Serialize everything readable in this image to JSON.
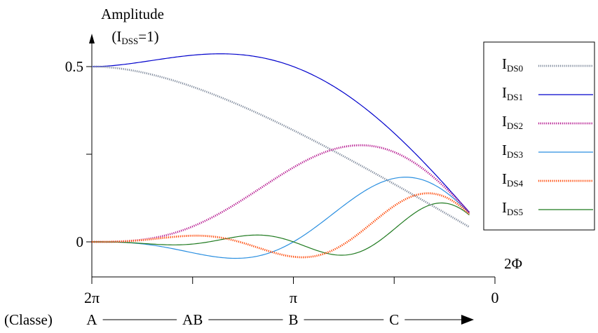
{
  "chart_data": {
    "type": "line",
    "ylabel": "Amplitude",
    "ylabel_sub": {
      "prefix": "(I",
      "sub": "DSS",
      "suffix": "=1)"
    },
    "xlabel": "2Φ",
    "x_reversed": true,
    "xlim": [
      6.2832,
      0
    ],
    "ylim": [
      -0.1,
      0.6
    ],
    "y_ticks": [
      {
        "value": 0.5,
        "label": "0.5"
      },
      {
        "value": 0.25,
        "label": ""
      },
      {
        "value": 0,
        "label": "0"
      }
    ],
    "x_ticks": [
      {
        "value": 6.2832,
        "label": "2π"
      },
      {
        "value": 4.7124,
        "label": ""
      },
      {
        "value": 3.1416,
        "label": "π"
      },
      {
        "value": 1.5708,
        "label": ""
      },
      {
        "value": 0,
        "label": "0"
      }
    ],
    "x_end": 0.4,
    "grid": false,
    "legend_position": "right",
    "classes": {
      "label": "(Classe)",
      "items": [
        {
          "label": "A",
          "x": 6.2832
        },
        {
          "label": "AB",
          "x": 4.7124
        },
        {
          "label": "B",
          "x": 3.1416
        },
        {
          "label": "C",
          "x": 1.5708
        }
      ]
    },
    "series": [
      {
        "name": "DS0",
        "color": "#7f8a9c",
        "style": "dotted"
      },
      {
        "name": "DS1",
        "color": "#0000cc",
        "style": "solid"
      },
      {
        "name": "DS2",
        "color": "#b5178f",
        "style": "dotted"
      },
      {
        "name": "DS3",
        "color": "#2a8fe0",
        "style": "solid"
      },
      {
        "name": "DS4",
        "color": "#ff4400",
        "style": "dotted"
      },
      {
        "name": "DS5",
        "color": "#1f7a1f",
        "style": "solid"
      }
    ]
  }
}
